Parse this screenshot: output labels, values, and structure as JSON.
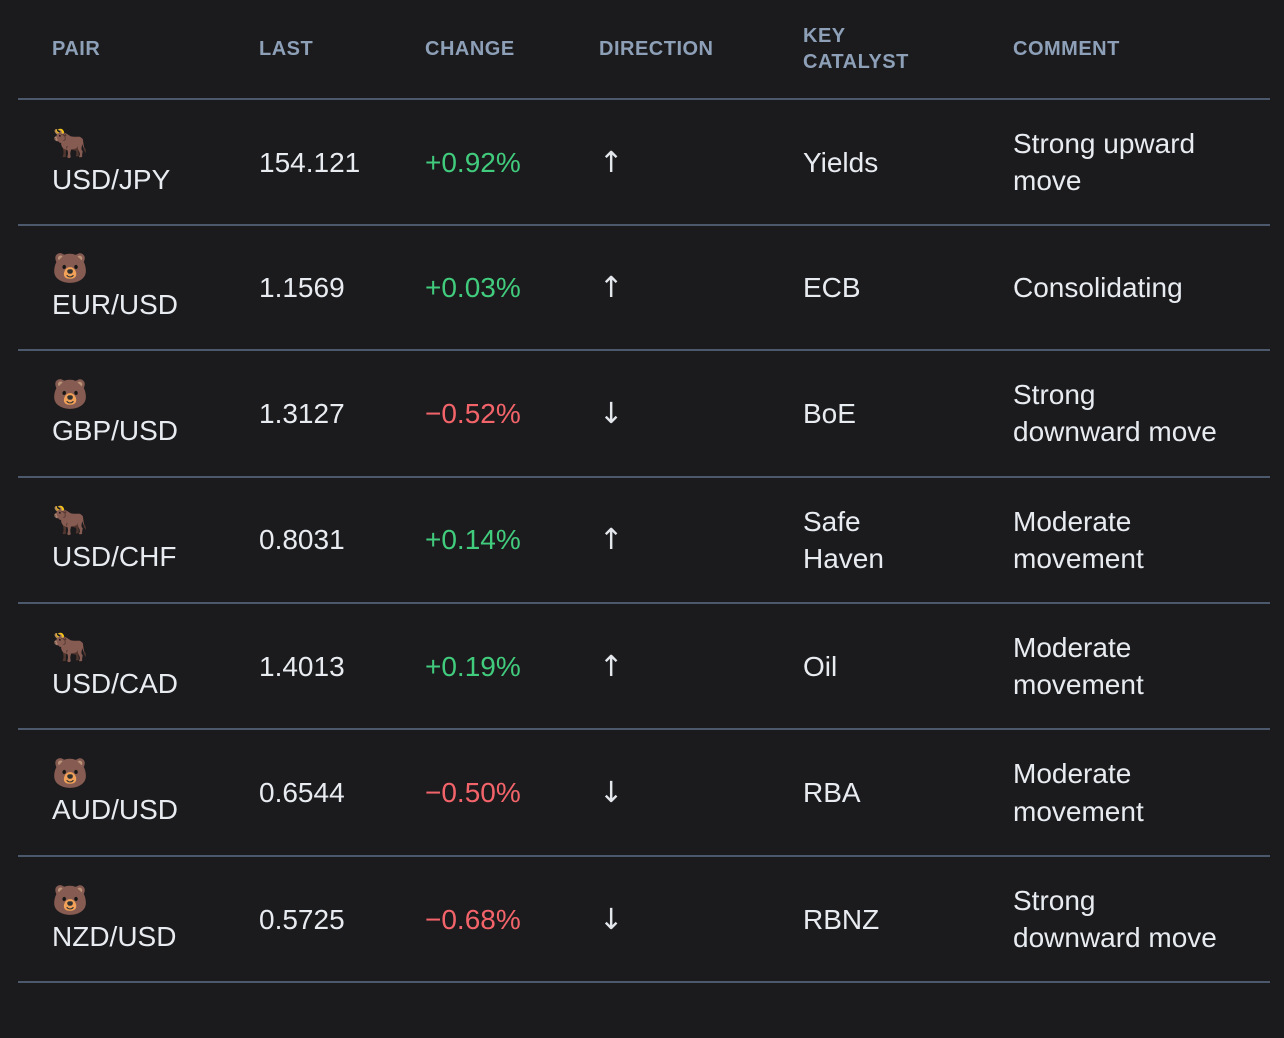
{
  "colors": {
    "background": "#1b1b1d",
    "divider": "#4c586c",
    "header_text": "#8da0b8",
    "body_text": "#e8ecf1",
    "positive": "#41cb7d",
    "negative": "#f3646a"
  },
  "chart_data": {
    "type": "table",
    "columns": [
      {
        "key": "pair",
        "label": "PAIR"
      },
      {
        "key": "last",
        "label": "LAST"
      },
      {
        "key": "change",
        "label": "CHANGE"
      },
      {
        "key": "direction",
        "label": "DIRECTION"
      },
      {
        "key": "catalyst",
        "label": "KEY CATALYST"
      },
      {
        "key": "comment",
        "label": "COMMENT"
      }
    ],
    "rows": [
      {
        "icon": "🐂",
        "icon_name": "ox-bull-icon",
        "pair": "USD/JPY",
        "last": "154.121",
        "change": "+0.92%",
        "trend": "up",
        "direction": "↑",
        "catalyst": "Yields",
        "comment": "Strong upward move"
      },
      {
        "icon": "🐻",
        "icon_name": "bear-icon",
        "pair": "EUR/USD",
        "last": "1.1569",
        "change": "+0.03%",
        "trend": "up",
        "direction": "↑",
        "catalyst": "ECB",
        "comment": "Consolidating"
      },
      {
        "icon": "🐻",
        "icon_name": "bear-icon",
        "pair": "GBP/USD",
        "last": "1.3127",
        "change": "−0.52%",
        "trend": "down",
        "direction": "↓",
        "catalyst": "BoE",
        "comment": "Strong downward move"
      },
      {
        "icon": "🐂",
        "icon_name": "ox-bull-icon",
        "pair": "USD/CHF",
        "last": "0.8031",
        "change": "+0.14%",
        "trend": "up",
        "direction": "↑",
        "catalyst": "Safe Haven",
        "comment": "Moderate movement"
      },
      {
        "icon": "🐂",
        "icon_name": "ox-bull-icon",
        "pair": "USD/CAD",
        "last": "1.4013",
        "change": "+0.19%",
        "trend": "up",
        "direction": "↑",
        "catalyst": "Oil",
        "comment": "Moderate movement"
      },
      {
        "icon": "🐻",
        "icon_name": "bear-icon",
        "pair": "AUD/USD",
        "last": "0.6544",
        "change": "−0.50%",
        "trend": "down",
        "direction": "↓",
        "catalyst": "RBA",
        "comment": "Moderate movement"
      },
      {
        "icon": "🐻",
        "icon_name": "bear-icon",
        "pair": "NZD/USD",
        "last": "0.5725",
        "change": "−0.68%",
        "trend": "down",
        "direction": "↓",
        "catalyst": "RBNZ",
        "comment": "Strong downward move"
      }
    ]
  }
}
